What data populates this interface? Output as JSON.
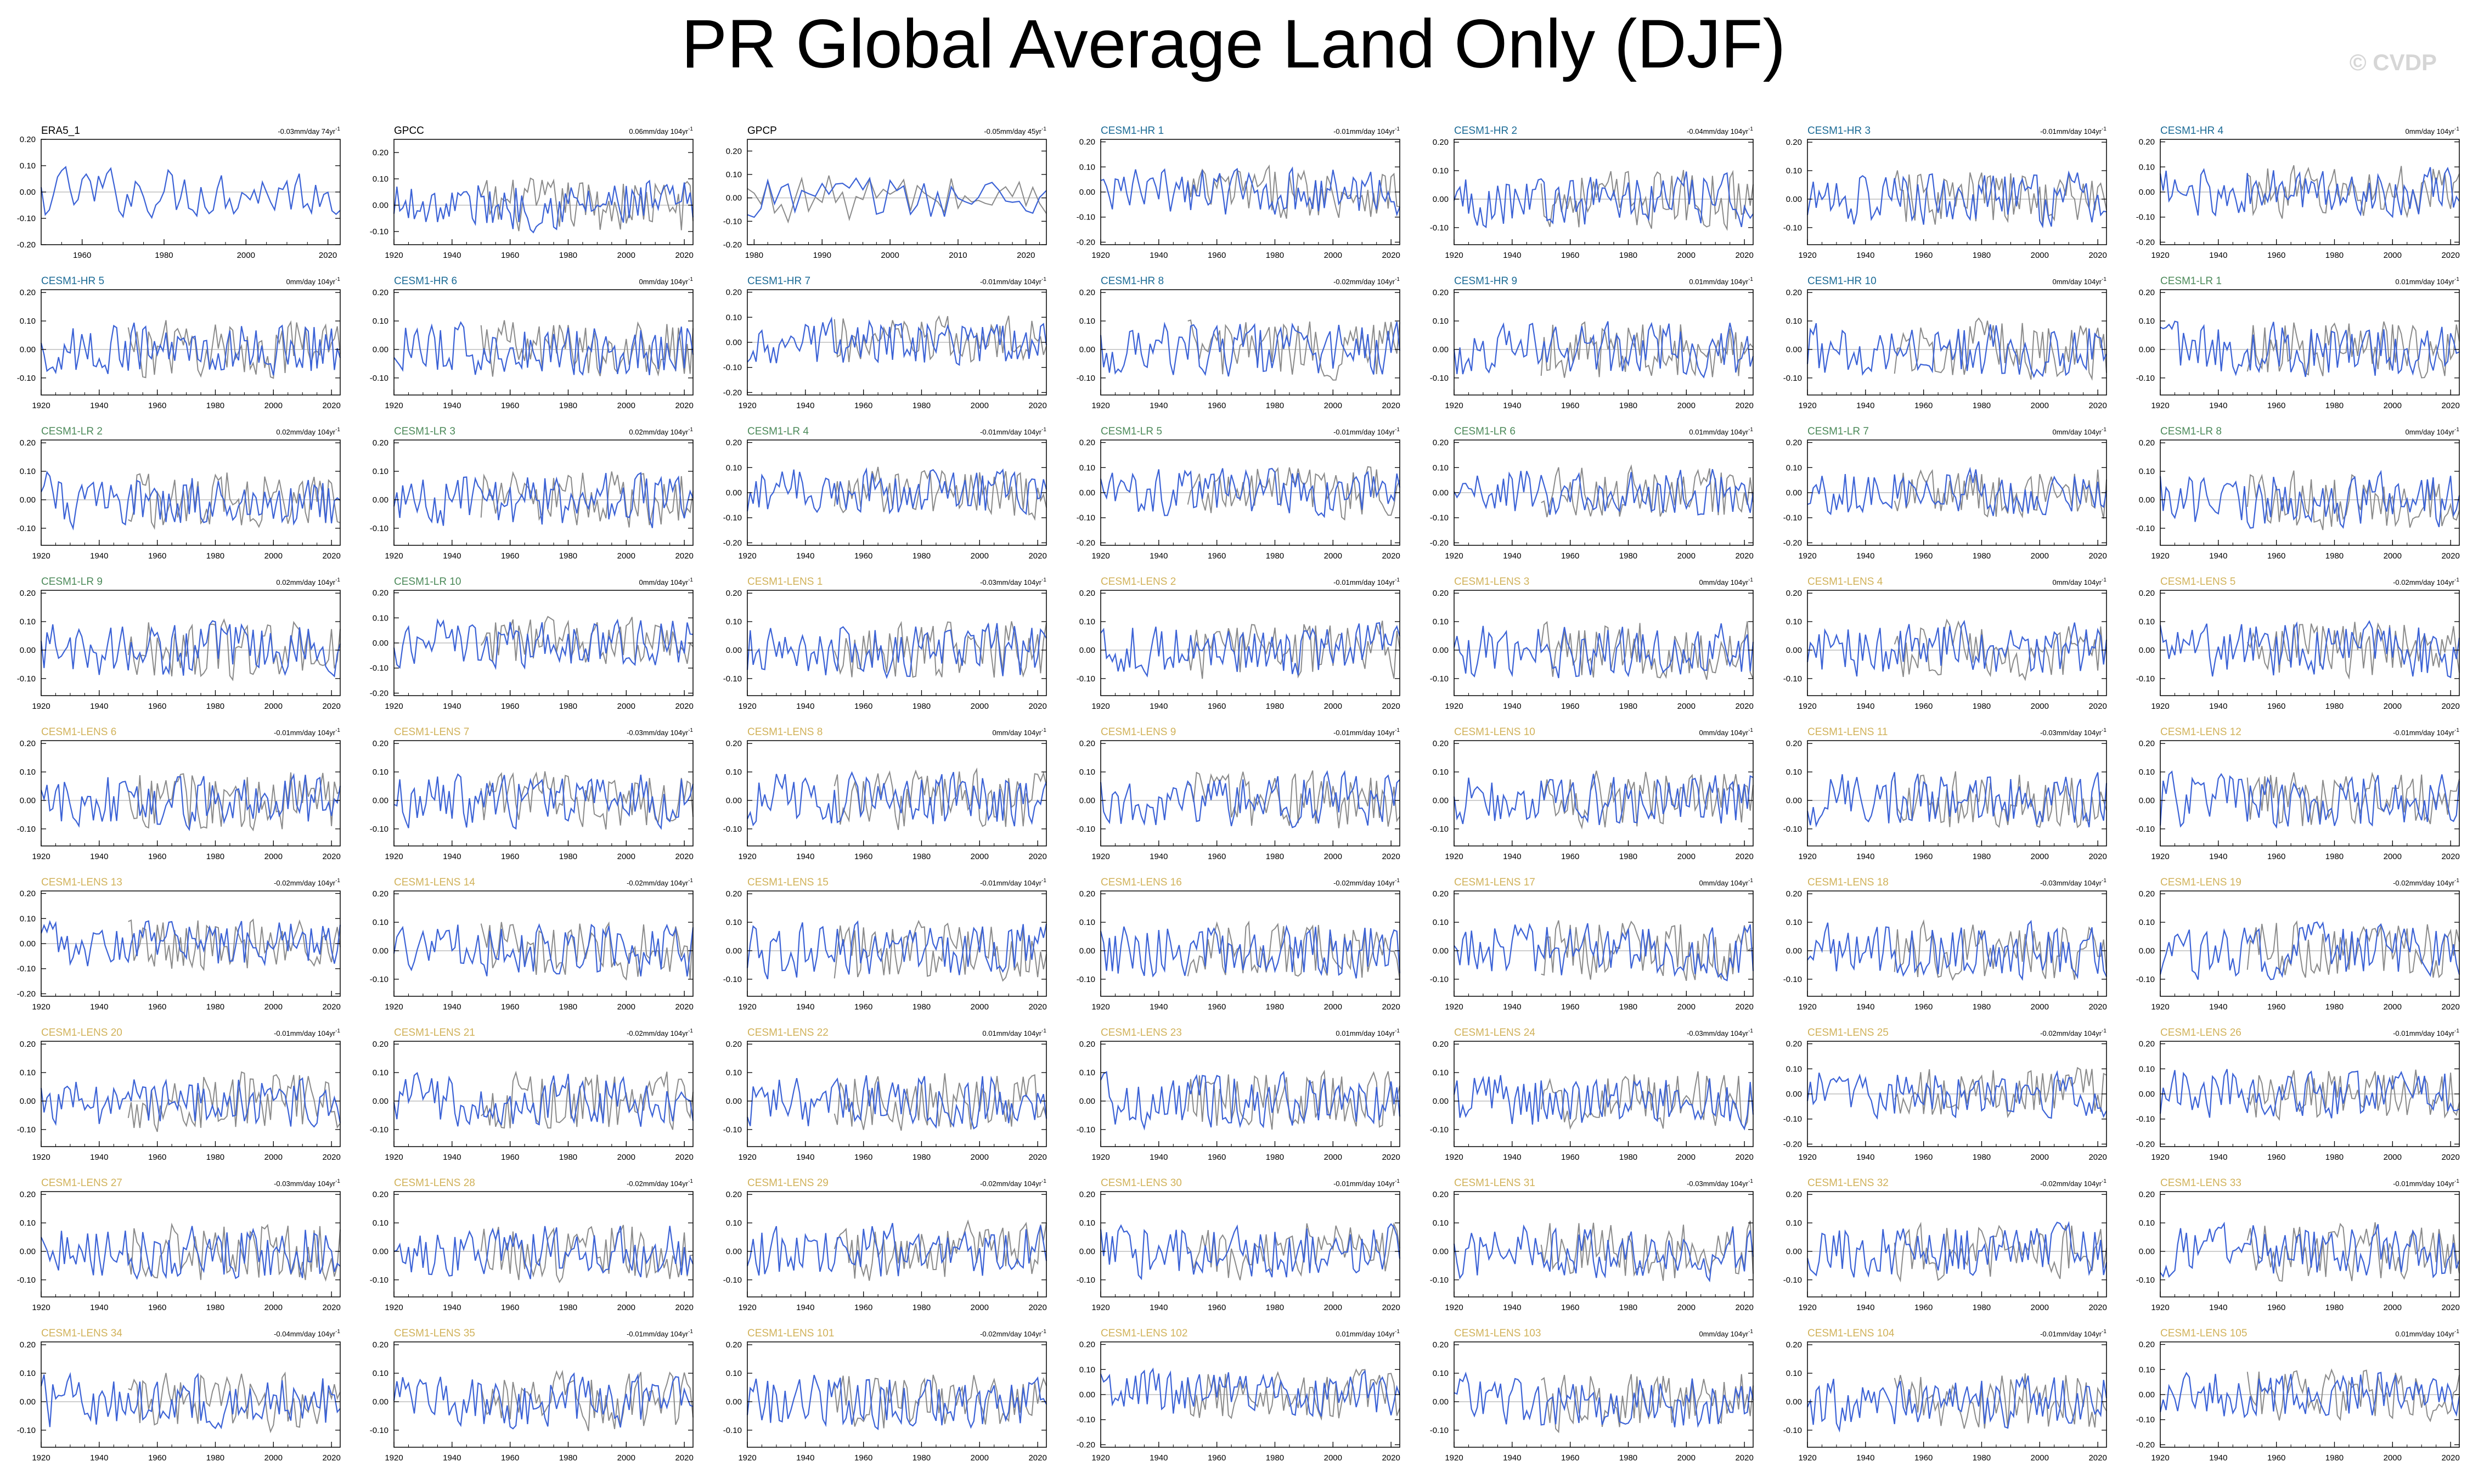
{
  "page": {
    "title": "PR Global Average Land Only (DJF)",
    "watermark": "© CVDP"
  },
  "colors": {
    "observed_line": "#3b62d6",
    "reference_line": "#8a8a8a",
    "zero_line": "#b0b0b0",
    "label_obs": "#000000",
    "label_hr": "#1c6b96",
    "label_lr": "#4c8a5a",
    "label_lens": "#d1b25a"
  },
  "chart_data": {
    "type": "line",
    "description_of_layout": "grid",
    "ylabel": "",
    "xlabel": "",
    "grid": false,
    "panels": [
      {
        "name": "ERA5_1",
        "label_group": "obs",
        "trend": "-0.03mm/day 74yr",
        "xlim": [
          1950,
          2023
        ],
        "xticks": [
          1960,
          1980,
          2000,
          2020
        ],
        "ylim": [
          -0.2,
          0.2
        ],
        "yticks": [
          "0.20",
          "0.10",
          "0.00",
          "-0.10",
          "-0.20"
        ]
      },
      {
        "name": "GPCC",
        "label_group": "obs",
        "trend": "0.06mm/day 104yr",
        "xlim": [
          1920,
          2023
        ],
        "xticks": [
          1920,
          1940,
          1960,
          1980,
          2000,
          2020
        ],
        "ylim": [
          -0.15,
          0.25
        ],
        "yticks": [
          "0.20",
          "0.10",
          "0.00",
          "-0.10"
        ]
      },
      {
        "name": "GPCP",
        "label_group": "obs",
        "trend": "-0.05mm/day 45yr",
        "xlim": [
          1979,
          2023
        ],
        "xticks": [
          1980,
          1990,
          2000,
          2010,
          2020
        ],
        "ylim": [
          -0.2,
          0.25
        ],
        "yticks": [
          "0.20",
          "0.10",
          "0.00",
          "-0.10",
          "-0.20"
        ]
      },
      {
        "name": "CESM1-HR 1",
        "label_group": "hr",
        "trend": "-0.01mm/day 104yr",
        "yticks": [
          "0.20",
          "0.10",
          "0.00",
          "-0.10",
          "-0.20"
        ]
      },
      {
        "name": "CESM1-HR 2",
        "label_group": "hr",
        "trend": "-0.04mm/day 104yr",
        "yticks": [
          "0.20",
          "0.10",
          "0.00",
          "-0.10"
        ]
      },
      {
        "name": "CESM1-HR 3",
        "label_group": "hr",
        "trend": "-0.01mm/day 104yr",
        "yticks": [
          "0.20",
          "0.10",
          "0.00",
          "-0.10"
        ]
      },
      {
        "name": "CESM1-HR 4",
        "label_group": "hr",
        "trend": "0mm/day 104yr",
        "yticks": [
          "0.20",
          "0.10",
          "0.00",
          "-0.10",
          "-0.20"
        ]
      },
      {
        "name": "CESM1-HR 5",
        "label_group": "hr",
        "trend": "0mm/day 104yr",
        "yticks": [
          "0.20",
          "0.10",
          "0.00",
          "-0.10"
        ]
      },
      {
        "name": "CESM1-HR 6",
        "label_group": "hr",
        "trend": "0mm/day 104yr",
        "yticks": [
          "0.20",
          "0.10",
          "0.00",
          "-0.10"
        ]
      },
      {
        "name": "CESM1-HR 7",
        "label_group": "hr",
        "trend": "-0.01mm/day 104yr",
        "yticks": [
          "0.20",
          "0.10",
          "0.00",
          "-0.10",
          "-0.20"
        ]
      },
      {
        "name": "CESM1-HR 8",
        "label_group": "hr",
        "trend": "-0.02mm/day 104yr",
        "yticks": [
          "0.20",
          "0.10",
          "0.00",
          "-0.10"
        ]
      },
      {
        "name": "CESM1-HR 9",
        "label_group": "hr",
        "trend": "0.01mm/day 104yr",
        "yticks": [
          "0.20",
          "0.10",
          "0.00",
          "-0.10"
        ]
      },
      {
        "name": "CESM1-HR 10",
        "label_group": "hr",
        "trend": "0mm/day 104yr",
        "yticks": [
          "0.20",
          "0.10",
          "0.00",
          "-0.10"
        ]
      },
      {
        "name": "CESM1-LR 1",
        "label_group": "lr",
        "trend": "0.01mm/day 104yr",
        "yticks": [
          "0.20",
          "0.10",
          "0.00",
          "-0.10"
        ]
      },
      {
        "name": "CESM1-LR 2",
        "label_group": "lr",
        "trend": "0.02mm/day 104yr",
        "yticks": [
          "0.20",
          "0.10",
          "0.00",
          "-0.10"
        ]
      },
      {
        "name": "CESM1-LR 3",
        "label_group": "lr",
        "trend": "0.02mm/day 104yr",
        "yticks": [
          "0.20",
          "0.10",
          "0.00",
          "-0.10"
        ]
      },
      {
        "name": "CESM1-LR 4",
        "label_group": "lr",
        "trend": "-0.01mm/day 104yr",
        "yticks": [
          "0.20",
          "0.10",
          "0.00",
          "-0.10",
          "-0.20"
        ]
      },
      {
        "name": "CESM1-LR 5",
        "label_group": "lr",
        "trend": "-0.01mm/day 104yr",
        "yticks": [
          "0.20",
          "0.10",
          "0.00",
          "-0.10",
          "-0.20"
        ]
      },
      {
        "name": "CESM1-LR 6",
        "label_group": "lr",
        "trend": "0.01mm/day 104yr",
        "yticks": [
          "0.20",
          "0.10",
          "0.00",
          "-0.10",
          "-0.20"
        ]
      },
      {
        "name": "CESM1-LR 7",
        "label_group": "lr",
        "trend": "0mm/day 104yr",
        "yticks": [
          "0.20",
          "0.10",
          "0.00",
          "-0.10",
          "-0.20"
        ]
      },
      {
        "name": "CESM1-LR 8",
        "label_group": "lr",
        "trend": "0mm/day 104yr",
        "yticks": [
          "0.20",
          "0.10",
          "0.00",
          "-0.10"
        ]
      },
      {
        "name": "CESM1-LR 9",
        "label_group": "lr",
        "trend": "0.02mm/day 104yr",
        "yticks": [
          "0.20",
          "0.10",
          "0.00",
          "-0.10"
        ]
      },
      {
        "name": "CESM1-LR 10",
        "label_group": "lr",
        "trend": "0mm/day 104yr",
        "yticks": [
          "0.20",
          "0.10",
          "0.00",
          "-0.10",
          "-0.20"
        ]
      },
      {
        "name": "CESM1-LENS 1",
        "label_group": "lens",
        "trend": "-0.03mm/day 104yr",
        "yticks": [
          "0.20",
          "0.10",
          "0.00",
          "-0.10"
        ]
      },
      {
        "name": "CESM1-LENS 2",
        "label_group": "lens",
        "trend": "-0.01mm/day 104yr",
        "yticks": [
          "0.20",
          "0.10",
          "0.00",
          "-0.10"
        ]
      },
      {
        "name": "CESM1-LENS 3",
        "label_group": "lens",
        "trend": "0mm/day 104yr",
        "yticks": [
          "0.20",
          "0.10",
          "0.00",
          "-0.10"
        ]
      },
      {
        "name": "CESM1-LENS 4",
        "label_group": "lens",
        "trend": "0mm/day 104yr",
        "yticks": [
          "0.20",
          "0.10",
          "0.00",
          "-0.10"
        ]
      },
      {
        "name": "CESM1-LENS 5",
        "label_group": "lens",
        "trend": "-0.02mm/day 104yr",
        "yticks": [
          "0.20",
          "0.10",
          "0.00",
          "-0.10"
        ]
      },
      {
        "name": "CESM1-LENS 6",
        "label_group": "lens",
        "trend": "-0.01mm/day 104yr",
        "yticks": [
          "0.20",
          "0.10",
          "0.00",
          "-0.10"
        ]
      },
      {
        "name": "CESM1-LENS 7",
        "label_group": "lens",
        "trend": "-0.03mm/day 104yr",
        "yticks": [
          "0.20",
          "0.10",
          "0.00",
          "-0.10"
        ]
      },
      {
        "name": "CESM1-LENS 8",
        "label_group": "lens",
        "trend": "0mm/day 104yr",
        "yticks": [
          "0.20",
          "0.10",
          "0.00",
          "-0.10"
        ]
      },
      {
        "name": "CESM1-LENS 9",
        "label_group": "lens",
        "trend": "-0.01mm/day 104yr",
        "yticks": [
          "0.20",
          "0.10",
          "0.00",
          "-0.10"
        ]
      },
      {
        "name": "CESM1-LENS 10",
        "label_group": "lens",
        "trend": "0mm/day 104yr",
        "yticks": [
          "0.20",
          "0.10",
          "0.00",
          "-0.10"
        ]
      },
      {
        "name": "CESM1-LENS 11",
        "label_group": "lens",
        "trend": "-0.03mm/day 104yr",
        "yticks": [
          "0.20",
          "0.10",
          "0.00",
          "-0.10"
        ]
      },
      {
        "name": "CESM1-LENS 12",
        "label_group": "lens",
        "trend": "-0.01mm/day 104yr",
        "yticks": [
          "0.20",
          "0.10",
          "0.00",
          "-0.10"
        ]
      },
      {
        "name": "CESM1-LENS 13",
        "label_group": "lens",
        "trend": "-0.02mm/day 104yr",
        "yticks": [
          "0.20",
          "0.10",
          "0.00",
          "-0.10",
          "-0.20"
        ]
      },
      {
        "name": "CESM1-LENS 14",
        "label_group": "lens",
        "trend": "-0.02mm/day 104yr",
        "yticks": [
          "0.20",
          "0.10",
          "0.00",
          "-0.10"
        ]
      },
      {
        "name": "CESM1-LENS 15",
        "label_group": "lens",
        "trend": "-0.01mm/day 104yr",
        "yticks": [
          "0.20",
          "0.10",
          "0.00",
          "-0.10"
        ]
      },
      {
        "name": "CESM1-LENS 16",
        "label_group": "lens",
        "trend": "-0.02mm/day 104yr",
        "yticks": [
          "0.20",
          "0.10",
          "0.00",
          "-0.10"
        ]
      },
      {
        "name": "CESM1-LENS 17",
        "label_group": "lens",
        "trend": "0mm/day 104yr",
        "yticks": [
          "0.20",
          "0.10",
          "0.00",
          "-0.10"
        ]
      },
      {
        "name": "CESM1-LENS 18",
        "label_group": "lens",
        "trend": "-0.03mm/day 104yr",
        "yticks": [
          "0.20",
          "0.10",
          "0.00",
          "-0.10"
        ]
      },
      {
        "name": "CESM1-LENS 19",
        "label_group": "lens",
        "trend": "-0.02mm/day 104yr",
        "yticks": [
          "0.20",
          "0.10",
          "0.00",
          "-0.10"
        ]
      },
      {
        "name": "CESM1-LENS 20",
        "label_group": "lens",
        "trend": "-0.01mm/day 104yr",
        "yticks": [
          "0.20",
          "0.10",
          "0.00",
          "-0.10"
        ]
      },
      {
        "name": "CESM1-LENS 21",
        "label_group": "lens",
        "trend": "-0.02mm/day 104yr",
        "yticks": [
          "0.20",
          "0.10",
          "0.00",
          "-0.10"
        ]
      },
      {
        "name": "CESM1-LENS 22",
        "label_group": "lens",
        "trend": "0.01mm/day 104yr",
        "yticks": [
          "0.20",
          "0.10",
          "0.00",
          "-0.10"
        ]
      },
      {
        "name": "CESM1-LENS 23",
        "label_group": "lens",
        "trend": "0.01mm/day 104yr",
        "yticks": [
          "0.20",
          "0.10",
          "0.00",
          "-0.10"
        ]
      },
      {
        "name": "CESM1-LENS 24",
        "label_group": "lens",
        "trend": "-0.03mm/day 104yr",
        "yticks": [
          "0.20",
          "0.10",
          "0.00",
          "-0.10"
        ]
      },
      {
        "name": "CESM1-LENS 25",
        "label_group": "lens",
        "trend": "-0.02mm/day 104yr",
        "yticks": [
          "0.20",
          "0.10",
          "0.00",
          "-0.10",
          "-0.20"
        ]
      },
      {
        "name": "CESM1-LENS 26",
        "label_group": "lens",
        "trend": "-0.01mm/day 104yr",
        "yticks": [
          "0.20",
          "0.10",
          "0.00",
          "-0.10",
          "-0.20"
        ]
      },
      {
        "name": "CESM1-LENS 27",
        "label_group": "lens",
        "trend": "-0.03mm/day 104yr",
        "yticks": [
          "0.20",
          "0.10",
          "0.00",
          "-0.10"
        ]
      },
      {
        "name": "CESM1-LENS 28",
        "label_group": "lens",
        "trend": "-0.02mm/day 104yr",
        "yticks": [
          "0.20",
          "0.10",
          "0.00",
          "-0.10"
        ]
      },
      {
        "name": "CESM1-LENS 29",
        "label_group": "lens",
        "trend": "-0.02mm/day 104yr",
        "yticks": [
          "0.20",
          "0.10",
          "0.00",
          "-0.10"
        ]
      },
      {
        "name": "CESM1-LENS 30",
        "label_group": "lens",
        "trend": "-0.01mm/day 104yr",
        "yticks": [
          "0.20",
          "0.10",
          "0.00",
          "-0.10"
        ]
      },
      {
        "name": "CESM1-LENS 31",
        "label_group": "lens",
        "trend": "-0.03mm/day 104yr",
        "yticks": [
          "0.20",
          "0.10",
          "0.00",
          "-0.10"
        ]
      },
      {
        "name": "CESM1-LENS 32",
        "label_group": "lens",
        "trend": "-0.02mm/day 104yr",
        "yticks": [
          "0.20",
          "0.10",
          "0.00",
          "-0.10"
        ]
      },
      {
        "name": "CESM1-LENS 33",
        "label_group": "lens",
        "trend": "-0.01mm/day 104yr",
        "yticks": [
          "0.20",
          "0.10",
          "0.00",
          "-0.10"
        ]
      },
      {
        "name": "CESM1-LENS 34",
        "label_group": "lens",
        "trend": "-0.04mm/day 104yr",
        "yticks": [
          "0.20",
          "0.10",
          "0.00",
          "-0.10"
        ]
      },
      {
        "name": "CESM1-LENS 35",
        "label_group": "lens",
        "trend": "-0.01mm/day 104yr",
        "yticks": [
          "0.20",
          "0.10",
          "0.00",
          "-0.10"
        ]
      },
      {
        "name": "CESM1-LENS 101",
        "label_group": "lens",
        "trend": "-0.02mm/day 104yr",
        "yticks": [
          "0.20",
          "0.10",
          "0.00",
          "-0.10"
        ]
      },
      {
        "name": "CESM1-LENS 102",
        "label_group": "lens",
        "trend": "0.01mm/day 104yr",
        "yticks": [
          "0.20",
          "0.10",
          "0.00",
          "-0.10",
          "-0.20"
        ]
      },
      {
        "name": "CESM1-LENS 103",
        "label_group": "lens",
        "trend": "0mm/day 104yr",
        "yticks": [
          "0.20",
          "0.10",
          "0.00",
          "-0.10"
        ]
      },
      {
        "name": "CESM1-LENS 104",
        "label_group": "lens",
        "trend": "-0.01mm/day 104yr",
        "yticks": [
          "0.20",
          "0.10",
          "0.00",
          "-0.10"
        ]
      },
      {
        "name": "CESM1-LENS 105",
        "label_group": "lens",
        "trend": "0.01mm/day 104yr",
        "yticks": [
          "0.20",
          "0.10",
          "0.00",
          "-0.10",
          "-0.20"
        ]
      }
    ],
    "default_xlim": [
      1920,
      2023
    ],
    "default_xticks": [
      1920,
      1940,
      1960,
      1980,
      2000,
      2020
    ],
    "trend_units_superscript": "-1"
  }
}
